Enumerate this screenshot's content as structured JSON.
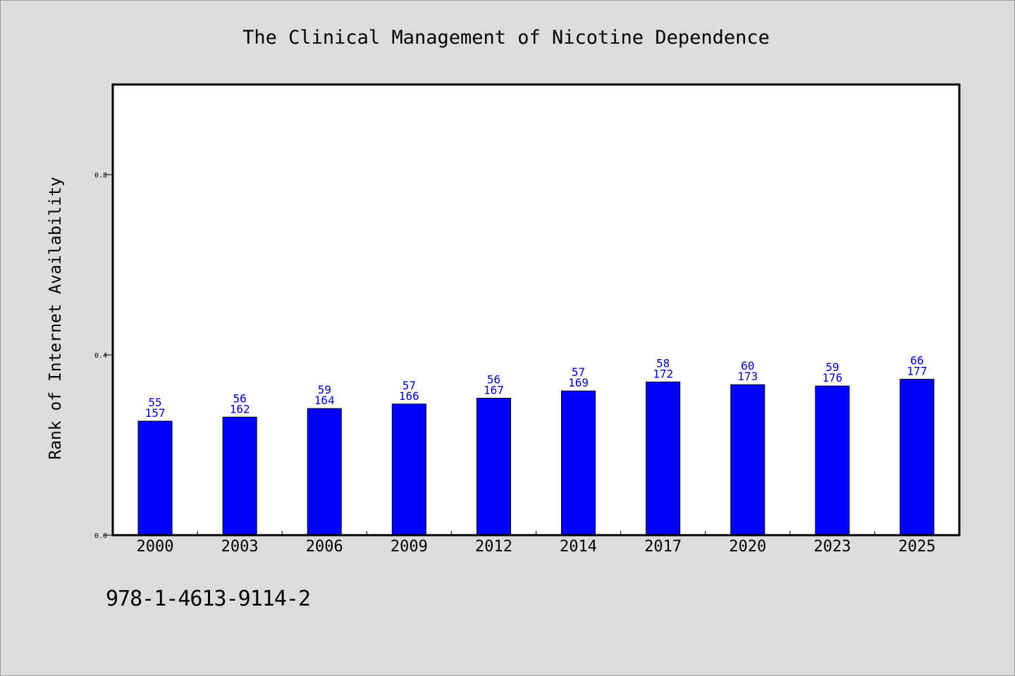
{
  "footer_text": "978-1-4613-9114-2",
  "colors": {
    "bar": "#0000ff",
    "label": "#0000cc",
    "background": "#dcdcdc",
    "plot": "#ffffff"
  },
  "chart_data": {
    "type": "bar",
    "title": "The Clinical Management of Nicotine Dependence",
    "xlabel": "",
    "ylabel": "Rank of Internet Availability",
    "ylim": [
      0,
      1.0
    ],
    "yticks": [
      "0.0",
      "0.4",
      "0.8"
    ],
    "categories": [
      "2000",
      "2003",
      "2006",
      "2009",
      "2012",
      "2014",
      "2017",
      "2020",
      "2023",
      "2025"
    ],
    "values": [
      0.253,
      0.262,
      0.281,
      0.291,
      0.304,
      0.32,
      0.34,
      0.334,
      0.331,
      0.346
    ],
    "label_top": [
      "55",
      "56",
      "59",
      "57",
      "56",
      "57",
      "58",
      "60",
      "59",
      "66"
    ],
    "label_bottom": [
      "157",
      "162",
      "164",
      "166",
      "167",
      "169",
      "172",
      "173",
      "176",
      "177"
    ],
    "grid": false,
    "legend": "none"
  }
}
